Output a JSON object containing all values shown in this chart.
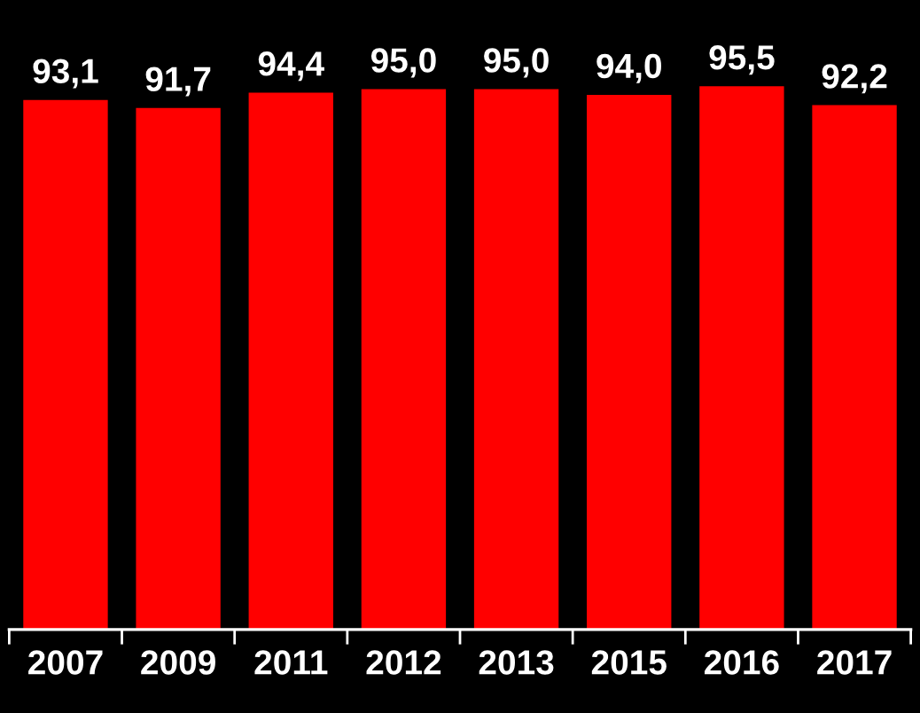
{
  "chart_data": {
    "type": "bar",
    "categories": [
      "2007",
      "2009",
      "2011",
      "2012",
      "2013",
      "2015",
      "2016",
      "2017"
    ],
    "values": [
      93.1,
      91.7,
      94.4,
      95.0,
      95.0,
      94.0,
      95.5,
      92.2
    ],
    "value_labels": [
      "93,1",
      "91,7",
      "94,4",
      "95,0",
      "95,0",
      "94,0",
      "95,5",
      "92,2"
    ],
    "color": "#ff0000",
    "grid": false,
    "legend": false
  }
}
